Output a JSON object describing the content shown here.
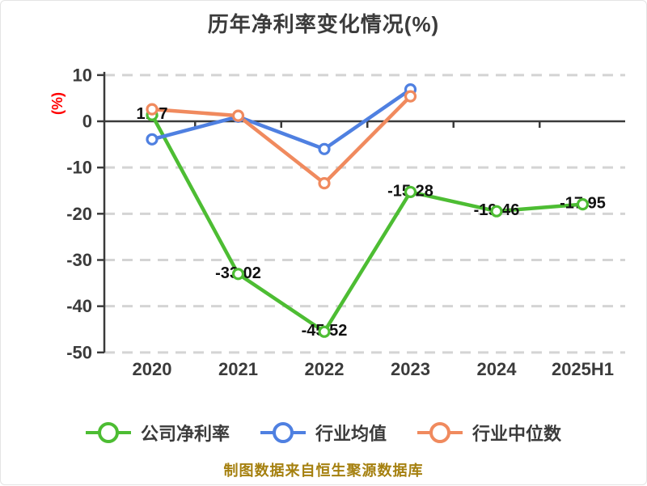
{
  "chart_data": {
    "type": "line",
    "title": "历年净利率变化情况(%)",
    "ylabel": "(%)",
    "ylabel_color": "#ff0000",
    "footer": "制图数据来自恒生聚源数据库",
    "footer_color": "#a5800f",
    "categories": [
      "2020",
      "2021",
      "2022",
      "2023",
      "2024",
      "2025H1"
    ],
    "ylim": [
      -50,
      10
    ],
    "yticks": [
      "10",
      "0",
      "-10",
      "-20",
      "-30",
      "-40",
      "-50"
    ],
    "grid": "horizontal-dashed",
    "legend_position": "bottom",
    "series": [
      {
        "name": "公司净利率",
        "color": "#4dbd33",
        "values": [
          1.37,
          -33.02,
          -45.52,
          -15.28,
          -19.46,
          -17.95
        ],
        "labels": [
          "1.37",
          "-33.02",
          "-45.52",
          "-15.28",
          "-19.46",
          "-17.95"
        ]
      },
      {
        "name": "行业均值",
        "color": "#4f80e1",
        "values": [
          -3.9,
          1.0,
          -6.0,
          6.9,
          null,
          null
        ]
      },
      {
        "name": "行业中位数",
        "color": "#f08a5e",
        "values": [
          2.6,
          1.2,
          -13.4,
          5.4,
          null,
          null
        ]
      }
    ]
  },
  "colors": {
    "axis": "#3a3a3a",
    "grid": "#d4d4d4",
    "tick_label": "#3b3b3b",
    "data_label": "#111111",
    "title": "#3b3b3b",
    "marker_fill": "#ffffff"
  }
}
